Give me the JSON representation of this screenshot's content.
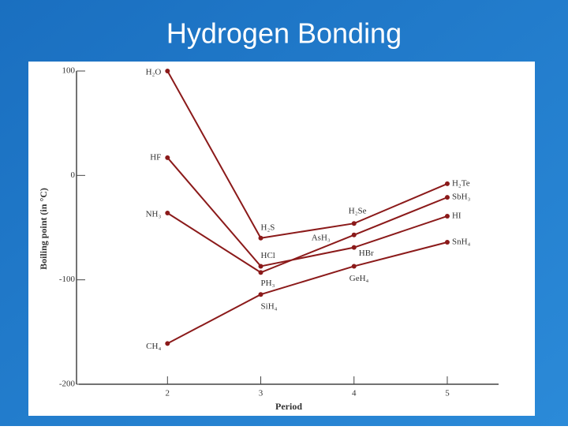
{
  "chart_data": {
    "type": "line",
    "title": "Hydrogen Bonding",
    "xlabel": "Period",
    "ylabel": "Boiling point (in °C)",
    "x": [
      2,
      3,
      4,
      5
    ],
    "series": [
      {
        "color": "#8b1a1a",
        "values": [
          100,
          -60,
          -46,
          -8
        ],
        "labels": [
          "H₂O",
          "H₂S",
          "H₂Se",
          "H₂Te"
        ]
      },
      {
        "color": "#8b1a1a",
        "values": [
          17,
          -87,
          -69,
          -39
        ],
        "labels": [
          "HF",
          "HCl",
          "HBr",
          "HI"
        ]
      },
      {
        "color": "#8b1a1a",
        "values": [
          -36,
          -93,
          -57,
          -21
        ],
        "labels": [
          "NH₃",
          "PH₃",
          "AsH₃",
          "SbH₃"
        ]
      },
      {
        "color": "#8b1a1a",
        "values": [
          -161,
          -114,
          -87,
          -64
        ],
        "labels": [
          "CH₄",
          "SiH₄",
          "GeH₄",
          "SnH₄"
        ]
      }
    ],
    "xlim": [
      1.05,
      5.55
    ],
    "xticks": [
      2,
      3,
      4,
      5
    ],
    "ylim": [
      -200,
      100
    ],
    "yticks": [
      100,
      0,
      -100,
      -200
    ]
  }
}
